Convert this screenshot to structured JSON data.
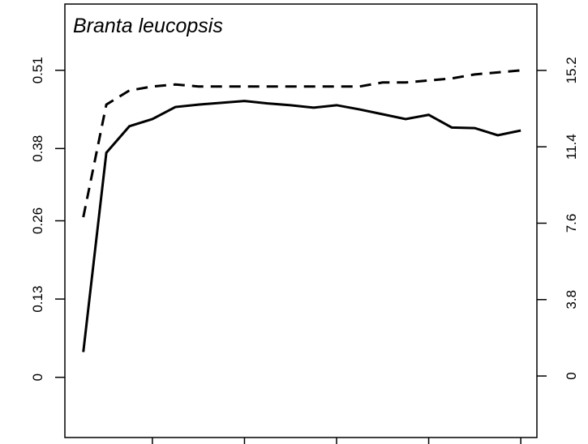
{
  "chart_data": {
    "type": "line",
    "title": "Branta leucopsis",
    "x": [
      1,
      2,
      3,
      4,
      5,
      6,
      7,
      8,
      9,
      10,
      11,
      12,
      13,
      14,
      15,
      16,
      17,
      18,
      19,
      20
    ],
    "series": [
      {
        "color": "#000000",
        "dash": false,
        "axis": "y",
        "values": [
          0.042,
          0.373,
          0.417,
          0.429,
          0.449,
          0.453,
          0.456,
          0.459,
          0.455,
          0.452,
          0.448,
          0.452,
          0.445,
          0.437,
          0.429,
          0.436,
          0.415,
          0.414,
          0.402,
          0.41
        ]
      },
      {
        "color": "#000000",
        "dash": true,
        "axis": "y2",
        "values": [
          7.9,
          13.5,
          14.2,
          14.4,
          14.5,
          14.4,
          14.4,
          14.4,
          14.4,
          14.4,
          14.4,
          14.4,
          14.4,
          14.6,
          14.6,
          14.7,
          14.8,
          15.0,
          15.1,
          15.2
        ]
      }
    ],
    "xlim": [
      0.2,
      20.7
    ],
    "xticks": [
      4,
      8,
      12,
      16,
      20
    ],
    "ylim": [
      -0.1,
      0.62
    ],
    "yticks": [
      0,
      0.13,
      0.26,
      0.38,
      0.51
    ],
    "y2lim": [
      -3.06,
      18.5
    ],
    "y2ticks": [
      0,
      3.8,
      7.6,
      11.4,
      15.2
    ]
  }
}
